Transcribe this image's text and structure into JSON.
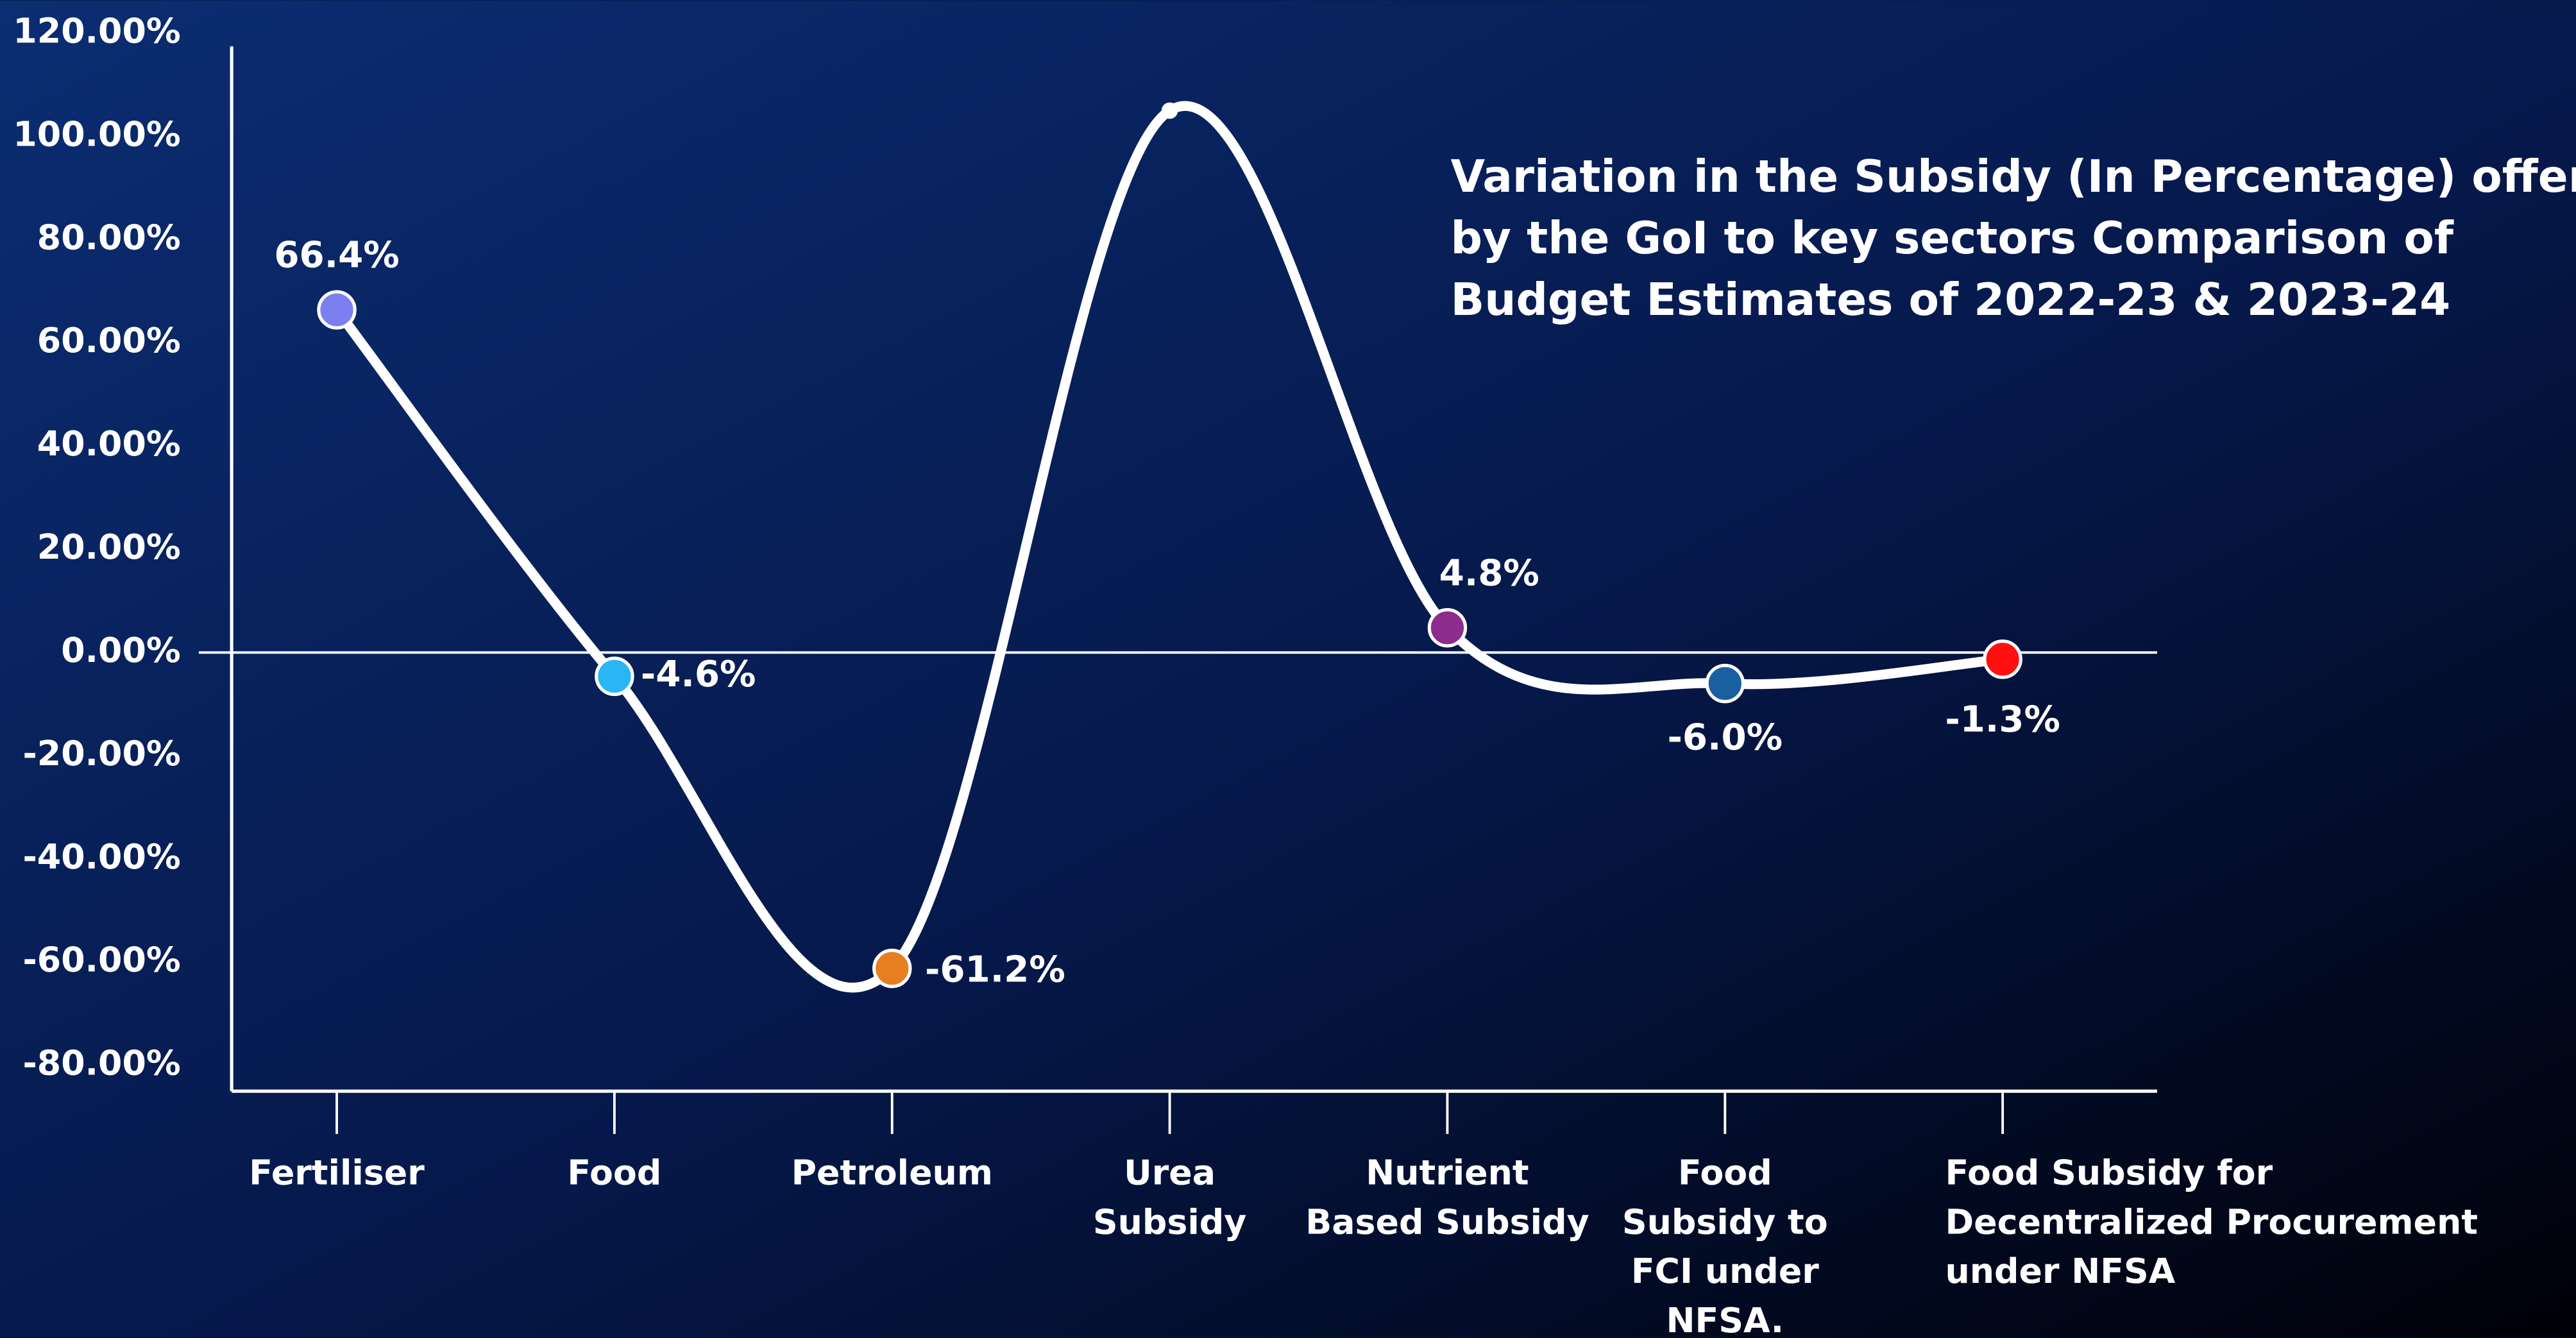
{
  "chart_data": {
    "type": "line",
    "title": [
      "Variation in the Subsidy (In Percentage) offered",
      "by the GoI to key sectors  Comparison of",
      "Budget Estimates of 2022-23 & 2023-24"
    ],
    "categories": [
      [
        "Fertiliser"
      ],
      [
        "Food"
      ],
      [
        "Petroleum"
      ],
      [
        "Urea",
        "Subsidy"
      ],
      [
        "Nutrient",
        "Based Subsidy"
      ],
      [
        "Food",
        "Subsidy to",
        "FCI under",
        "NFSA."
      ],
      [
        "Food Subsidy for",
        "Decentralized Procurement",
        "under NFSA"
      ]
    ],
    "values": [
      66.4,
      -4.6,
      -61.2,
      105,
      4.8,
      -6.0,
      -1.3
    ],
    "value_labels": [
      "66.4%",
      "-4.6%",
      "-61.2%",
      null,
      "4.8%",
      "-6.0%",
      "-1.3%"
    ],
    "point_colors": [
      "#7b7ff0",
      "#29b6f6",
      "#e67e22",
      "#ffffff",
      "#8e2c8e",
      "#1a5fa0",
      "#ff1010"
    ],
    "color": "#ffffff",
    "ylim": [
      -85,
      120
    ],
    "yticks": [
      {
        "value": 120,
        "label": "120.00%"
      },
      {
        "value": 100,
        "label": "100.00%"
      },
      {
        "value": 80,
        "label": "80.00%"
      },
      {
        "value": 60,
        "label": "60.00%"
      },
      {
        "value": 40,
        "label": "40.00%"
      },
      {
        "value": 20,
        "label": "20.00%"
      },
      {
        "value": 0,
        "label": "0.00%"
      },
      {
        "value": -20,
        "label": "-20.00%"
      },
      {
        "value": -40,
        "label": "-40.00%"
      },
      {
        "value": -60,
        "label": "-60.00%"
      },
      {
        "value": -80,
        "label": "-80.00%"
      }
    ]
  }
}
